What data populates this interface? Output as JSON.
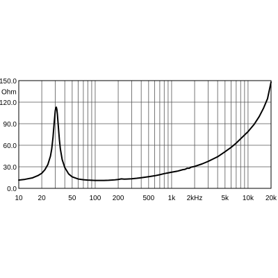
{
  "chart_data": {
    "type": "line",
    "title": "",
    "xlabel": "",
    "ylabel": "Ohm",
    "x_scale": "log",
    "xlim": [
      10,
      20000
    ],
    "ylim": [
      0,
      150
    ],
    "grid": true,
    "legend": "none",
    "x_tick_labels": [
      {
        "value": 10,
        "label": "10"
      },
      {
        "value": 20,
        "label": "20"
      },
      {
        "value": 50,
        "label": "50"
      },
      {
        "value": 100,
        "label": "100"
      },
      {
        "value": 200,
        "label": "200"
      },
      {
        "value": 500,
        "label": "500"
      },
      {
        "value": 1000,
        "label": "1k"
      },
      {
        "value": 2000,
        "label": "2kHz"
      },
      {
        "value": 5000,
        "label": "5k"
      },
      {
        "value": 10000,
        "label": "10k"
      },
      {
        "value": 20000,
        "label": "20k"
      }
    ],
    "y_tick_labels": [
      {
        "value": 0,
        "label": "0.0"
      },
      {
        "value": 30,
        "label": "30.0"
      },
      {
        "value": 60,
        "label": "60.0"
      },
      {
        "value": 90,
        "label": "90.0"
      },
      {
        "value": 120,
        "label": "120.0"
      },
      {
        "value": 150,
        "label": "150.0"
      }
    ],
    "series": [
      {
        "color": "#000000",
        "points": [
          [
            10,
            11.5
          ],
          [
            12,
            12.5
          ],
          [
            15,
            14.5
          ],
          [
            18,
            18
          ],
          [
            20,
            21
          ],
          [
            22,
            26
          ],
          [
            24,
            33
          ],
          [
            26,
            45
          ],
          [
            27,
            55
          ],
          [
            28,
            70
          ],
          [
            29,
            90
          ],
          [
            30,
            108
          ],
          [
            30.5,
            112
          ],
          [
            31,
            113
          ],
          [
            31.5,
            110
          ],
          [
            32,
            103
          ],
          [
            33,
            85
          ],
          [
            34,
            68
          ],
          [
            35,
            55
          ],
          [
            37,
            40
          ],
          [
            40,
            29
          ],
          [
            45,
            20
          ],
          [
            50,
            16
          ],
          [
            60,
            13
          ],
          [
            70,
            12
          ],
          [
            80,
            11.5
          ],
          [
            100,
            11
          ],
          [
            130,
            11
          ],
          [
            150,
            11.2
          ],
          [
            180,
            11.8
          ],
          [
            200,
            12.3
          ],
          [
            220,
            13.2
          ],
          [
            240,
            12.8
          ],
          [
            260,
            13
          ],
          [
            300,
            13.3
          ],
          [
            350,
            14
          ],
          [
            400,
            14.8
          ],
          [
            500,
            16.2
          ],
          [
            600,
            17.5
          ],
          [
            700,
            19
          ],
          [
            800,
            20.5
          ],
          [
            900,
            21.5
          ],
          [
            1000,
            22.5
          ],
          [
            1200,
            24
          ],
          [
            1400,
            26
          ],
          [
            1500,
            26.5
          ],
          [
            1600,
            28
          ],
          [
            1700,
            28
          ],
          [
            1800,
            29.5
          ],
          [
            2000,
            30.5
          ],
          [
            2500,
            34
          ],
          [
            3000,
            37.5
          ],
          [
            4000,
            44
          ],
          [
            5000,
            51
          ],
          [
            6000,
            57
          ],
          [
            7000,
            63
          ],
          [
            8000,
            69
          ],
          [
            10000,
            79
          ],
          [
            12000,
            89
          ],
          [
            14000,
            100
          ],
          [
            16000,
            112
          ],
          [
            18000,
            125
          ],
          [
            20000,
            148
          ]
        ]
      }
    ]
  }
}
